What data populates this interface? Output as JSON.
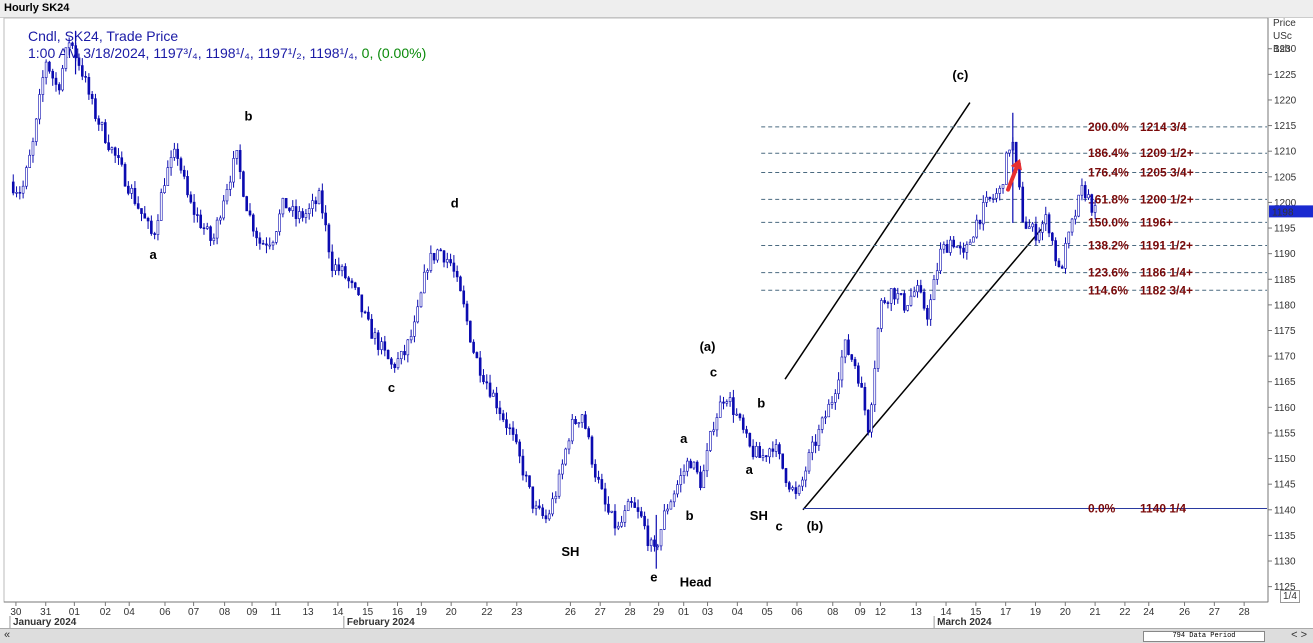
{
  "window": {
    "title": "Hourly SK24"
  },
  "legend": {
    "line1": "Cndl, SK24, Trade Price",
    "line2_prefix": "1:00 AM 3/18/2024, 1197³/₄, 1198¹/₄, 1197¹/₂, 1198¹/₄, ",
    "line2_zero": "0, (0.00%)"
  },
  "axis_header": [
    "Price",
    "USc",
    "Bsh"
  ],
  "current_price_tag": "1198",
  "footer": {
    "nav_left": "«",
    "nav_right": "< >",
    "period": "794 Data Period",
    "page": "1/4"
  },
  "chart_data": {
    "type": "candlestick",
    "title": "Hourly SK24",
    "series_name": "SK24, Trade Price",
    "y_unit": "USc/Bsh",
    "ylim": [
      1122,
      1236
    ],
    "y_ticks": [
      1125,
      1130,
      1135,
      1140,
      1145,
      1150,
      1155,
      1160,
      1165,
      1170,
      1175,
      1180,
      1185,
      1190,
      1195,
      1200,
      1205,
      1210,
      1215,
      1220,
      1225,
      1230
    ],
    "x_ticks": [
      {
        "label": "30",
        "pos": 0.5
      },
      {
        "label": "31",
        "pos": 3.0
      },
      {
        "label": "01",
        "pos": 5.4
      },
      {
        "label": "02",
        "pos": 8.0
      },
      {
        "label": "04",
        "pos": 10.0
      },
      {
        "label": "06",
        "pos": 13.0
      },
      {
        "label": "07",
        "pos": 15.4
      },
      {
        "label": "08",
        "pos": 18.0
      },
      {
        "label": "09",
        "pos": 20.3
      },
      {
        "label": "11",
        "pos": 22.3
      },
      {
        "label": "13",
        "pos": 25.0
      },
      {
        "label": "14",
        "pos": 27.5
      },
      {
        "label": "15",
        "pos": 30.0
      },
      {
        "label": "16",
        "pos": 32.5
      },
      {
        "label": "19",
        "pos": 34.5
      },
      {
        "label": "20",
        "pos": 37.0
      },
      {
        "label": "22",
        "pos": 40.0
      },
      {
        "label": "23",
        "pos": 42.5
      },
      {
        "label": "26",
        "pos": 47.0
      },
      {
        "label": "27",
        "pos": 49.5
      },
      {
        "label": "28",
        "pos": 52.0
      },
      {
        "label": "29",
        "pos": 54.4
      },
      {
        "label": "01",
        "pos": 56.5
      },
      {
        "label": "03",
        "pos": 58.5
      },
      {
        "label": "04",
        "pos": 61.0
      },
      {
        "label": "05",
        "pos": 63.5
      },
      {
        "label": "06",
        "pos": 66.0
      },
      {
        "label": "08",
        "pos": 69.0
      },
      {
        "label": "09",
        "pos": 71.3
      },
      {
        "label": "12",
        "pos": 73.0
      },
      {
        "label": "13",
        "pos": 76.0
      },
      {
        "label": "14",
        "pos": 78.5
      },
      {
        "label": "15",
        "pos": 81.0
      },
      {
        "label": "17",
        "pos": 83.5
      },
      {
        "label": "19",
        "pos": 86.0
      },
      {
        "label": "20",
        "pos": 88.5
      },
      {
        "label": "21",
        "pos": 91.0
      },
      {
        "label": "22",
        "pos": 93.5
      },
      {
        "label": "24",
        "pos": 95.5
      },
      {
        "label": "26",
        "pos": 98.5
      },
      {
        "label": "27",
        "pos": 101.0
      },
      {
        "label": "28",
        "pos": 103.5
      }
    ],
    "months": [
      {
        "label": "January 2024",
        "pos": 0.0
      },
      {
        "label": "February 2024",
        "pos": 28.0
      },
      {
        "label": "March 2024",
        "pos": 77.5
      }
    ],
    "x_range": [
      -0.5,
      105.5
    ],
    "path": [
      [
        0,
        1204
      ],
      [
        1,
        1202
      ],
      [
        2,
        1212
      ],
      [
        3,
        1228
      ],
      [
        4,
        1222
      ],
      [
        5,
        1232
      ],
      [
        6,
        1226
      ],
      [
        7,
        1218
      ],
      [
        8,
        1213
      ],
      [
        9,
        1208
      ],
      [
        10,
        1203
      ],
      [
        11,
        1198
      ],
      [
        12,
        1193
      ],
      [
        13,
        1205
      ],
      [
        14,
        1210
      ],
      [
        15,
        1200
      ],
      [
        16,
        1196
      ],
      [
        17,
        1192
      ],
      [
        18,
        1202
      ],
      [
        19,
        1209
      ],
      [
        20,
        1198
      ],
      [
        21,
        1192
      ],
      [
        22,
        1193
      ],
      [
        23,
        1200
      ],
      [
        24,
        1197
      ],
      [
        25,
        1198
      ],
      [
        26,
        1201
      ],
      [
        27,
        1188
      ],
      [
        28,
        1186
      ],
      [
        29,
        1182
      ],
      [
        30,
        1176
      ],
      [
        31,
        1172
      ],
      [
        32,
        1168
      ],
      [
        33,
        1170
      ],
      [
        34,
        1176
      ],
      [
        35,
        1188
      ],
      [
        36,
        1191
      ],
      [
        37,
        1188
      ],
      [
        38,
        1180
      ],
      [
        39,
        1170
      ],
      [
        40,
        1165
      ],
      [
        41,
        1160
      ],
      [
        42,
        1155
      ],
      [
        43,
        1148
      ],
      [
        44,
        1140
      ],
      [
        45,
        1138
      ],
      [
        46,
        1145
      ],
      [
        47,
        1156
      ],
      [
        48,
        1159
      ],
      [
        49,
        1148
      ],
      [
        50,
        1140
      ],
      [
        51,
        1136
      ],
      [
        52,
        1141
      ],
      [
        53,
        1138
      ],
      [
        54,
        1131
      ],
      [
        55,
        1140
      ],
      [
        56,
        1145
      ],
      [
        57,
        1150
      ],
      [
        58,
        1145
      ],
      [
        59,
        1157
      ],
      [
        60,
        1163
      ],
      [
        61,
        1158
      ],
      [
        62,
        1152
      ],
      [
        63,
        1150
      ],
      [
        64,
        1153
      ],
      [
        65,
        1147
      ],
      [
        66,
        1142
      ],
      [
        67,
        1150
      ],
      [
        68,
        1156
      ],
      [
        69,
        1162
      ],
      [
        70,
        1172
      ],
      [
        71,
        1168
      ],
      [
        72,
        1156
      ],
      [
        73,
        1180
      ],
      [
        74,
        1183
      ],
      [
        75,
        1180
      ],
      [
        76,
        1183
      ],
      [
        77,
        1178
      ],
      [
        78,
        1190
      ],
      [
        79,
        1193
      ],
      [
        80,
        1189
      ],
      [
        81,
        1196
      ],
      [
        82,
        1200
      ],
      [
        83,
        1202
      ],
      [
        84,
        1213
      ],
      [
        85,
        1196
      ],
      [
        86,
        1194
      ],
      [
        87,
        1197
      ],
      [
        88,
        1186
      ],
      [
        89,
        1195
      ],
      [
        90,
        1203
      ],
      [
        91,
        1198
      ]
    ],
    "trend_channel": {
      "upper": [
        [
          65.0,
          1165.5
        ],
        [
          80.5,
          1219.5
        ]
      ],
      "lower": [
        [
          66.5,
          1140.0
        ],
        [
          86.5,
          1194.8
        ]
      ]
    },
    "fib_levels": [
      {
        "pct": "200.0%",
        "price": "1214 3/4",
        "value": 1214.75
      },
      {
        "pct": "186.4%",
        "price": "1209 1/2+",
        "value": 1209.6
      },
      {
        "pct": "176.4%",
        "price": "1205 3/4+",
        "value": 1205.85
      },
      {
        "pct": "161.8%",
        "price": "1200 1/2+",
        "value": 1200.6
      },
      {
        "pct": "150.0%",
        "price": "1196+",
        "value": 1196.1
      },
      {
        "pct": "138.2%",
        "price": "1191 1/2+",
        "value": 1191.6
      },
      {
        "pct": "123.6%",
        "price": "1186 1/4+",
        "value": 1186.3
      },
      {
        "pct": "114.6%",
        "price": "1182 3/4+",
        "value": 1182.85
      }
    ],
    "fib_start": 63.0,
    "base_level": {
      "pct": "0.0%",
      "price": "1140 1/4",
      "value": 1140.25,
      "start": 66.5
    },
    "annotations": [
      {
        "text": "a",
        "x": 12.0,
        "y": 1189
      },
      {
        "text": "b",
        "x": 20.0,
        "y": 1216
      },
      {
        "text": "c",
        "x": 32.0,
        "y": 1163
      },
      {
        "text": "d",
        "x": 37.3,
        "y": 1199
      },
      {
        "text": "SH",
        "x": 47.0,
        "y": 1131
      },
      {
        "text": "e",
        "x": 54.0,
        "y": 1126
      },
      {
        "text": "Head",
        "x": 57.5,
        "y": 1125
      },
      {
        "text": "b",
        "x": 57.0,
        "y": 1138
      },
      {
        "text": "a",
        "x": 56.5,
        "y": 1153
      },
      {
        "text": "(a)",
        "x": 58.5,
        "y": 1171
      },
      {
        "text": "c",
        "x": 59.0,
        "y": 1166
      },
      {
        "text": "b",
        "x": 63.0,
        "y": 1160
      },
      {
        "text": "a",
        "x": 62.0,
        "y": 1147
      },
      {
        "text": "SH",
        "x": 62.8,
        "y": 1138
      },
      {
        "text": "c",
        "x": 64.5,
        "y": 1136
      },
      {
        "text": "(b)",
        "x": 67.5,
        "y": 1136
      },
      {
        "text": "(c)",
        "x": 79.7,
        "y": 1224
      }
    ],
    "arrow": {
      "from": [
        83.7,
        1202.5
      ],
      "to": [
        84.7,
        1208.5
      ],
      "color": "#e83030"
    },
    "last_price": 1198.25,
    "colors": {
      "candles": "#0a0ab0",
      "fib": "#4a6a80",
      "base": "#2a3aa0",
      "channel": "#000000",
      "fib_text": "#7a0a0a"
    }
  }
}
